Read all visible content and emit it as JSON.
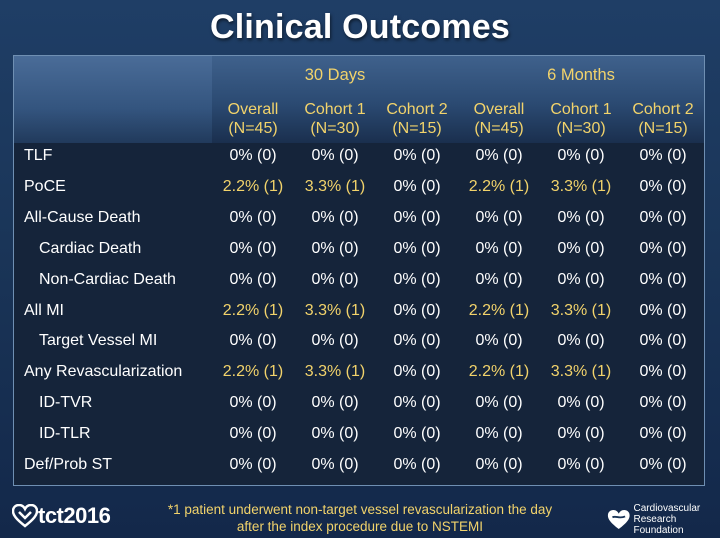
{
  "title": "Clinical Outcomes",
  "colors": {
    "highlight": "#f2d36b",
    "normal": "#ffffff"
  },
  "groups": [
    "30 Days",
    "6 Months"
  ],
  "columns": [
    {
      "line1": "Overall",
      "line2": "(N=45)"
    },
    {
      "line1": "Cohort 1",
      "line2": "(N=30)"
    },
    {
      "line1": "Cohort 2",
      "line2": "(N=15)"
    },
    {
      "line1": "Overall",
      "line2": "(N=45)"
    },
    {
      "line1": "Cohort 1",
      "line2": "(N=30)"
    },
    {
      "line1": "Cohort 2",
      "line2": "(N=15)"
    }
  ],
  "rows": [
    {
      "label": "TLF",
      "indent": false,
      "values": [
        "0% (0)",
        "0% (0)",
        "0% (0)",
        "0% (0)",
        "0% (0)",
        "0% (0)"
      ]
    },
    {
      "label": "PoCE",
      "indent": false,
      "values": [
        "2.2% (1)",
        "3.3% (1)",
        "0% (0)",
        "2.2% (1)",
        "3.3% (1)",
        "0% (0)"
      ]
    },
    {
      "label": "All-Cause Death",
      "indent": false,
      "values": [
        "0% (0)",
        "0% (0)",
        "0% (0)",
        "0% (0)",
        "0% (0)",
        "0% (0)"
      ]
    },
    {
      "label": "Cardiac Death",
      "indent": true,
      "values": [
        "0% (0)",
        "0% (0)",
        "0% (0)",
        "0% (0)",
        "0% (0)",
        "0% (0)"
      ]
    },
    {
      "label": "Non-Cardiac Death",
      "indent": true,
      "values": [
        "0% (0)",
        "0% (0)",
        "0% (0)",
        "0% (0)",
        "0% (0)",
        "0% (0)"
      ]
    },
    {
      "label": "All MI",
      "indent": false,
      "values": [
        "2.2% (1)",
        "3.3% (1)",
        "0% (0)",
        "2.2% (1)",
        "3.3% (1)",
        "0% (0)"
      ]
    },
    {
      "label": "Target Vessel MI",
      "indent": true,
      "values": [
        "0% (0)",
        "0% (0)",
        "0% (0)",
        "0% (0)",
        "0% (0)",
        "0% (0)"
      ]
    },
    {
      "label": "Any Revascularization",
      "indent": false,
      "values": [
        "2.2% (1)",
        "3.3% (1)",
        "0% (0)",
        "2.2% (1)",
        "3.3% (1)",
        "0% (0)"
      ]
    },
    {
      "label": "ID-TVR",
      "indent": true,
      "values": [
        "0% (0)",
        "0% (0)",
        "0% (0)",
        "0% (0)",
        "0% (0)",
        "0% (0)"
      ]
    },
    {
      "label": "ID-TLR",
      "indent": true,
      "values": [
        "0% (0)",
        "0% (0)",
        "0% (0)",
        "0% (0)",
        "0% (0)",
        "0% (0)"
      ]
    },
    {
      "label": "Def/Prob ST",
      "indent": false,
      "values": [
        "0% (0)",
        "0% (0)",
        "0% (0)",
        "0% (0)",
        "0% (0)",
        "0% (0)"
      ]
    }
  ],
  "footnote": {
    "line1": "*1 patient underwent non-target vessel revascularization the day",
    "line2": "after the index procedure due to NSTEMI"
  },
  "logos": {
    "tct": "tct2016",
    "crf_line1": "Cardiovascular",
    "crf_line2": "Research Foundation"
  }
}
